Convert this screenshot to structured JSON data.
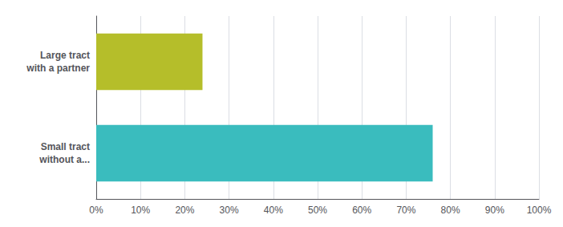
{
  "chart_data": {
    "type": "bar",
    "orientation": "horizontal",
    "categories": [
      "Small tract\nwithout a...",
      "Large tract\nwith a partner"
    ],
    "values": [
      76,
      24
    ],
    "colors": [
      "#3abcbe",
      "#b5be2a"
    ],
    "xlim": [
      0,
      100
    ],
    "xticks": [
      {
        "value": 0,
        "label": "0%"
      },
      {
        "value": 10,
        "label": "10%"
      },
      {
        "value": 20,
        "label": "20%"
      },
      {
        "value": 30,
        "label": "30%"
      },
      {
        "value": 40,
        "label": "40%"
      },
      {
        "value": 50,
        "label": "50%"
      },
      {
        "value": 60,
        "label": "60%"
      },
      {
        "value": 70,
        "label": "70%"
      },
      {
        "value": 80,
        "label": "80%"
      },
      {
        "value": 90,
        "label": "90%"
      },
      {
        "value": 100,
        "label": "100%"
      }
    ],
    "grid": true
  }
}
